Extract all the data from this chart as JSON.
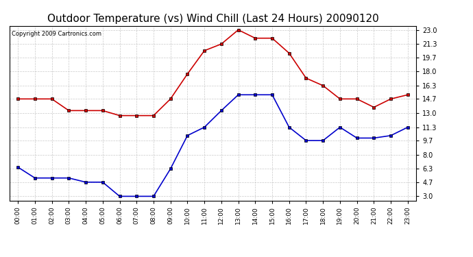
{
  "title": "Outdoor Temperature (vs) Wind Chill (Last 24 Hours) 20090120",
  "copyright": "Copyright 2009 Cartronics.com",
  "hours": [
    "00:00",
    "01:00",
    "02:00",
    "03:00",
    "04:00",
    "05:00",
    "06:00",
    "07:00",
    "08:00",
    "09:00",
    "10:00",
    "11:00",
    "12:00",
    "13:00",
    "14:00",
    "15:00",
    "16:00",
    "17:00",
    "18:00",
    "19:00",
    "20:00",
    "21:00",
    "22:00",
    "23:00"
  ],
  "temp": [
    14.7,
    14.7,
    14.7,
    13.3,
    13.3,
    13.3,
    12.7,
    12.7,
    12.7,
    14.7,
    17.7,
    20.5,
    21.3,
    23.0,
    22.0,
    22.0,
    20.2,
    17.2,
    16.3,
    14.7,
    14.7,
    13.7,
    14.7,
    15.2
  ],
  "wind_chill": [
    6.5,
    5.2,
    5.2,
    5.2,
    4.7,
    4.7,
    3.0,
    3.0,
    3.0,
    6.3,
    10.3,
    11.3,
    13.3,
    15.2,
    15.2,
    15.2,
    11.3,
    9.7,
    9.7,
    11.3,
    10.0,
    10.0,
    10.3,
    11.3
  ],
  "y_ticks": [
    3.0,
    4.7,
    6.3,
    8.0,
    9.7,
    11.3,
    13.0,
    14.7,
    16.3,
    18.0,
    19.7,
    21.3,
    23.0
  ],
  "ylim": [
    2.5,
    23.5
  ],
  "temp_color": "#cc0000",
  "wind_chill_color": "#0000cc",
  "background_color": "#ffffff",
  "grid_color": "#bbbbbb",
  "title_fontsize": 11,
  "marker": "s",
  "marker_size": 3,
  "line_width": 1.2
}
